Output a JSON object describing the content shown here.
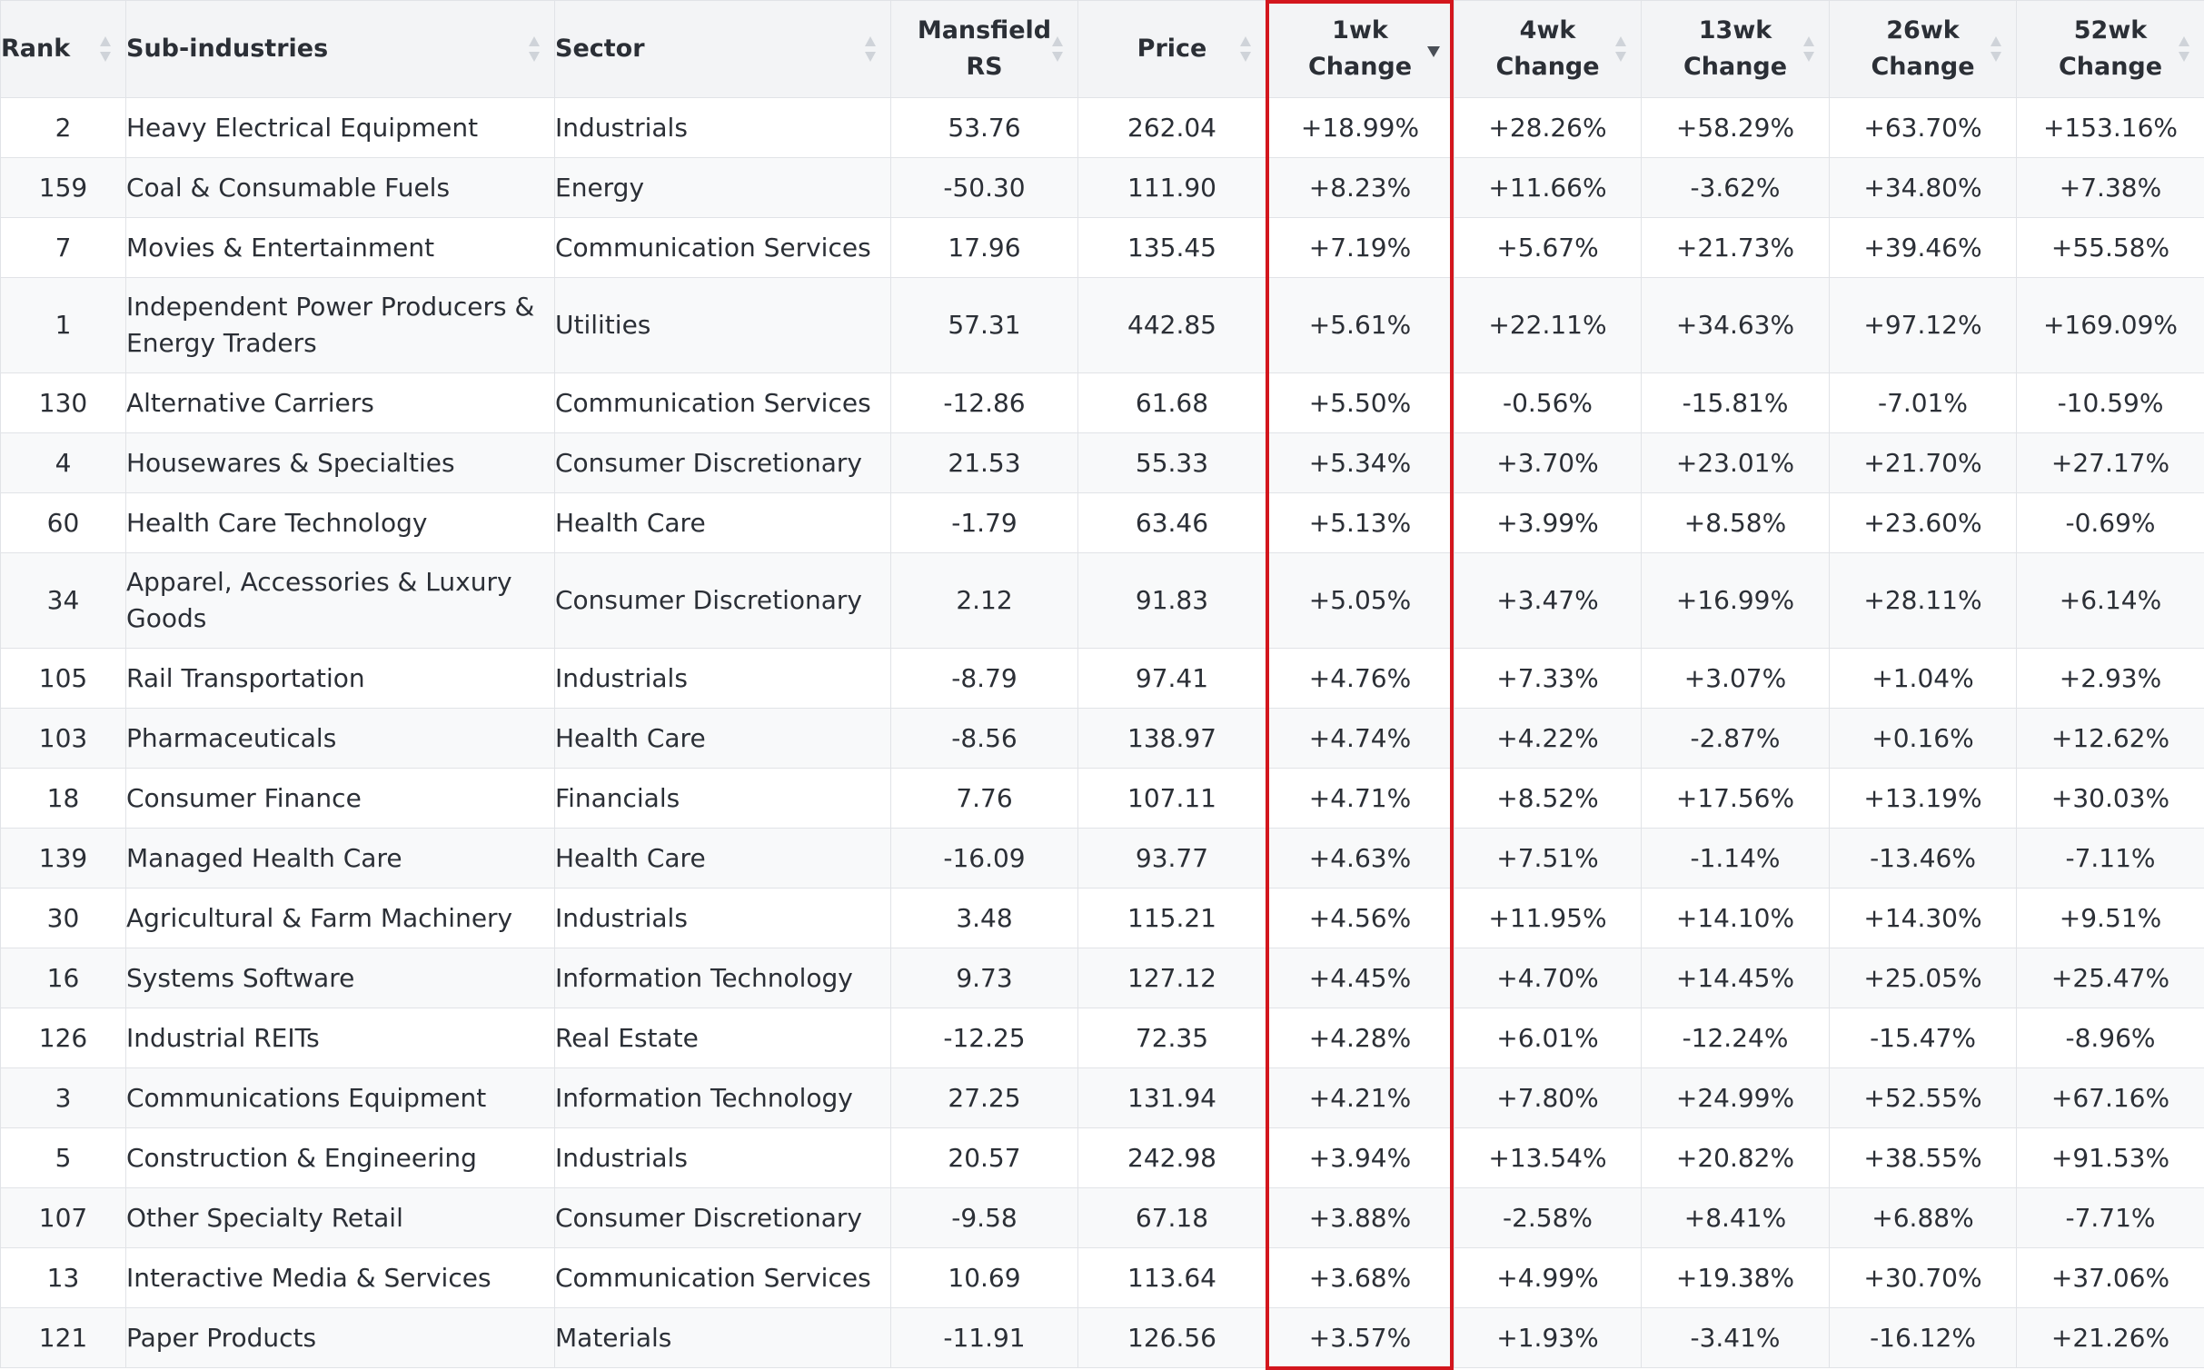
{
  "table": {
    "headers": [
      {
        "label": "Rank"
      },
      {
        "label": "Sub-industries"
      },
      {
        "label": "Sector"
      },
      {
        "label_lines": [
          "Mansfield",
          "RS"
        ]
      },
      {
        "label": "Price"
      },
      {
        "label_lines": [
          "1wk",
          "Change"
        ]
      },
      {
        "label_lines": [
          "4wk",
          "Change"
        ]
      },
      {
        "label_lines": [
          "13wk",
          "Change"
        ]
      },
      {
        "label_lines": [
          "26wk",
          "Change"
        ]
      },
      {
        "label_lines": [
          "52wk",
          "Change"
        ]
      }
    ],
    "sorted_column": "1wk Change",
    "sort_direction": "descending",
    "rows": [
      {
        "rank": "2",
        "sub_industry": "Heavy Electrical Equipment",
        "sector": "Industrials",
        "rs": "53.76",
        "price": "262.04",
        "w1": "+18.99%",
        "w4": "+28.26%",
        "w13": "+58.29%",
        "w26": "+63.70%",
        "w52": "+153.16%"
      },
      {
        "rank": "159",
        "sub_industry": "Coal & Consumable Fuels",
        "sector": "Energy",
        "rs": "-50.30",
        "price": "111.90",
        "w1": "+8.23%",
        "w4": "+11.66%",
        "w13": "-3.62%",
        "w26": "+34.80%",
        "w52": "+7.38%"
      },
      {
        "rank": "7",
        "sub_industry": "Movies & Entertainment",
        "sector": "Communication Services",
        "rs": "17.96",
        "price": "135.45",
        "w1": "+7.19%",
        "w4": "+5.67%",
        "w13": "+21.73%",
        "w26": "+39.46%",
        "w52": "+55.58%"
      },
      {
        "rank": "1",
        "sub_industry": "Independent Power Producers & Energy Traders",
        "sector": "Utilities",
        "rs": "57.31",
        "price": "442.85",
        "w1": "+5.61%",
        "w4": "+22.11%",
        "w13": "+34.63%",
        "w26": "+97.12%",
        "w52": "+169.09%"
      },
      {
        "rank": "130",
        "sub_industry": "Alternative Carriers",
        "sector": "Communication Services",
        "rs": "-12.86",
        "price": "61.68",
        "w1": "+5.50%",
        "w4": "-0.56%",
        "w13": "-15.81%",
        "w26": "-7.01%",
        "w52": "-10.59%"
      },
      {
        "rank": "4",
        "sub_industry": "Housewares & Specialties",
        "sector": "Consumer Discretionary",
        "rs": "21.53",
        "price": "55.33",
        "w1": "+5.34%",
        "w4": "+3.70%",
        "w13": "+23.01%",
        "w26": "+21.70%",
        "w52": "+27.17%"
      },
      {
        "rank": "60",
        "sub_industry": "Health Care Technology",
        "sector": "Health Care",
        "rs": "-1.79",
        "price": "63.46",
        "w1": "+5.13%",
        "w4": "+3.99%",
        "w13": "+8.58%",
        "w26": "+23.60%",
        "w52": "-0.69%"
      },
      {
        "rank": "34",
        "sub_industry": "Apparel, Accessories & Luxury Goods",
        "sector": "Consumer Discretionary",
        "rs": "2.12",
        "price": "91.83",
        "w1": "+5.05%",
        "w4": "+3.47%",
        "w13": "+16.99%",
        "w26": "+28.11%",
        "w52": "+6.14%"
      },
      {
        "rank": "105",
        "sub_industry": "Rail Transportation",
        "sector": "Industrials",
        "rs": "-8.79",
        "price": "97.41",
        "w1": "+4.76%",
        "w4": "+7.33%",
        "w13": "+3.07%",
        "w26": "+1.04%",
        "w52": "+2.93%"
      },
      {
        "rank": "103",
        "sub_industry": "Pharmaceuticals",
        "sector": "Health Care",
        "rs": "-8.56",
        "price": "138.97",
        "w1": "+4.74%",
        "w4": "+4.22%",
        "w13": "-2.87%",
        "w26": "+0.16%",
        "w52": "+12.62%"
      },
      {
        "rank": "18",
        "sub_industry": "Consumer Finance",
        "sector": "Financials",
        "rs": "7.76",
        "price": "107.11",
        "w1": "+4.71%",
        "w4": "+8.52%",
        "w13": "+17.56%",
        "w26": "+13.19%",
        "w52": "+30.03%"
      },
      {
        "rank": "139",
        "sub_industry": "Managed Health Care",
        "sector": "Health Care",
        "rs": "-16.09",
        "price": "93.77",
        "w1": "+4.63%",
        "w4": "+7.51%",
        "w13": "-1.14%",
        "w26": "-13.46%",
        "w52": "-7.11%"
      },
      {
        "rank": "30",
        "sub_industry": "Agricultural & Farm Machinery",
        "sector": "Industrials",
        "rs": "3.48",
        "price": "115.21",
        "w1": "+4.56%",
        "w4": "+11.95%",
        "w13": "+14.10%",
        "w26": "+14.30%",
        "w52": "+9.51%"
      },
      {
        "rank": "16",
        "sub_industry": "Systems Software",
        "sector": "Information Technology",
        "rs": "9.73",
        "price": "127.12",
        "w1": "+4.45%",
        "w4": "+4.70%",
        "w13": "+14.45%",
        "w26": "+25.05%",
        "w52": "+25.47%"
      },
      {
        "rank": "126",
        "sub_industry": "Industrial REITs",
        "sector": "Real Estate",
        "rs": "-12.25",
        "price": "72.35",
        "w1": "+4.28%",
        "w4": "+6.01%",
        "w13": "-12.24%",
        "w26": "-15.47%",
        "w52": "-8.96%"
      },
      {
        "rank": "3",
        "sub_industry": "Communications Equipment",
        "sector": "Information Technology",
        "rs": "27.25",
        "price": "131.94",
        "w1": "+4.21%",
        "w4": "+7.80%",
        "w13": "+24.99%",
        "w26": "+52.55%",
        "w52": "+67.16%"
      },
      {
        "rank": "5",
        "sub_industry": "Construction & Engineering",
        "sector": "Industrials",
        "rs": "20.57",
        "price": "242.98",
        "w1": "+3.94%",
        "w4": "+13.54%",
        "w13": "+20.82%",
        "w26": "+38.55%",
        "w52": "+91.53%"
      },
      {
        "rank": "107",
        "sub_industry": "Other Specialty Retail",
        "sector": "Consumer Discretionary",
        "rs": "-9.58",
        "price": "67.18",
        "w1": "+3.88%",
        "w4": "-2.58%",
        "w13": "+8.41%",
        "w26": "+6.88%",
        "w52": "-7.71%"
      },
      {
        "rank": "13",
        "sub_industry": "Interactive Media & Services",
        "sector": "Communication Services",
        "rs": "10.69",
        "price": "113.64",
        "w1": "+3.68%",
        "w4": "+4.99%",
        "w13": "+19.38%",
        "w26": "+30.70%",
        "w52": "+37.06%"
      },
      {
        "rank": "121",
        "sub_industry": "Paper Products",
        "sector": "Materials",
        "rs": "-11.91",
        "price": "126.56",
        "w1": "+3.57%",
        "w4": "+1.93%",
        "w13": "-3.41%",
        "w26": "-16.12%",
        "w52": "+21.26%"
      }
    ]
  },
  "colors": {
    "negative": "#e02424",
    "highlight_border": "#d3161d",
    "header_bg": "#f3f4f6"
  }
}
